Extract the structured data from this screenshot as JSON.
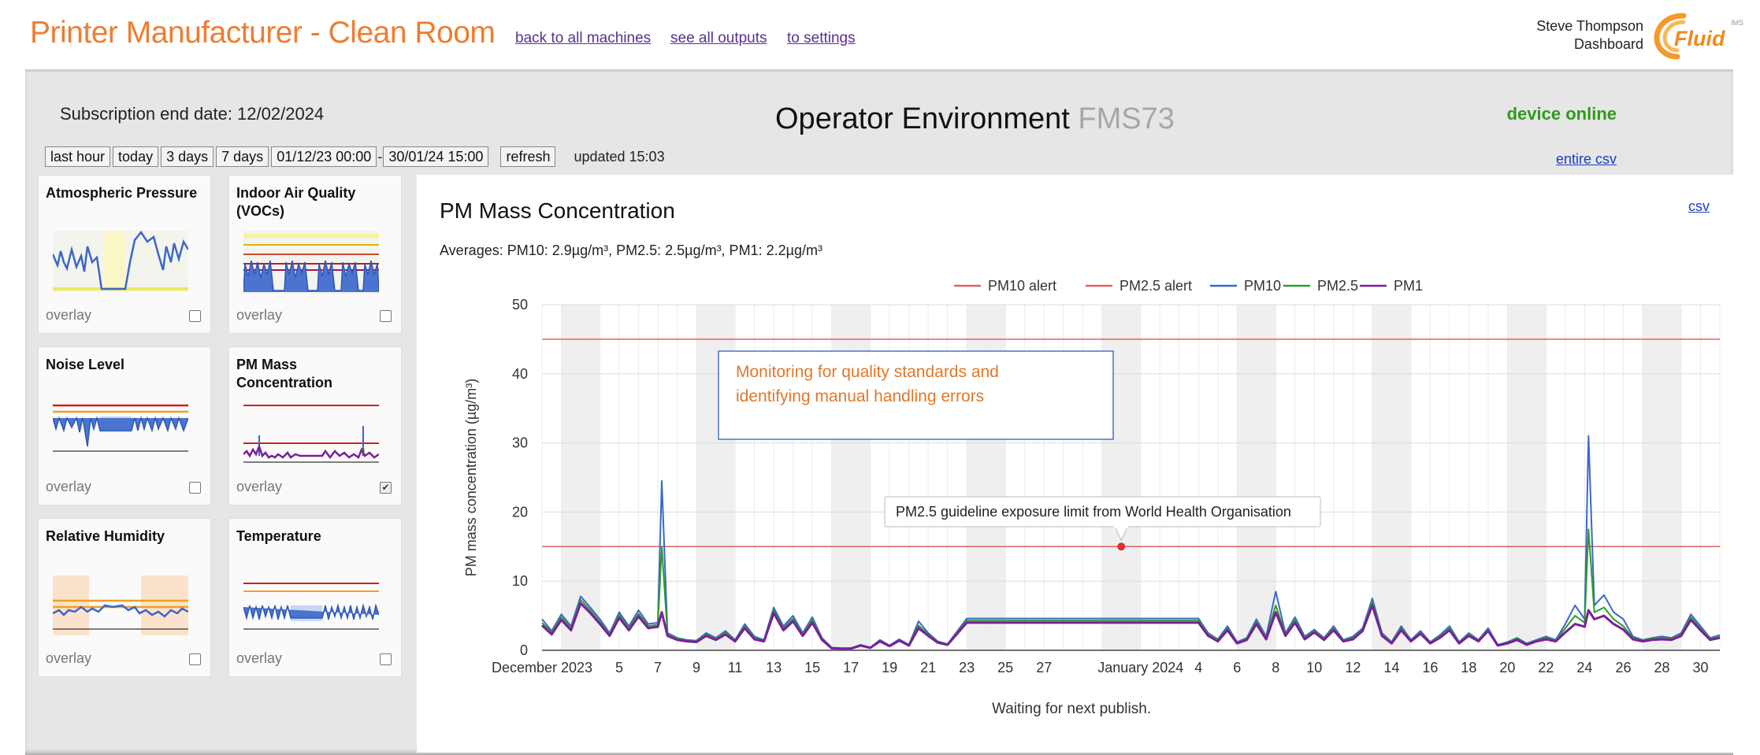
{
  "header": {
    "title": "Printer Manufacturer - Clean Room",
    "links": [
      "back to all machines",
      "see all outputs",
      "to settings"
    ],
    "user": "Steve Thompson",
    "user_sub": "Dashboard",
    "logo_text": "Fluid",
    "logo_tm": "IMS"
  },
  "subscription": "Subscription end date: 12/02/2024",
  "page_heading": {
    "main": "Operator Environment",
    "device": "FMS73"
  },
  "device_status": "device online",
  "entire_csv": "entire csv",
  "range": {
    "buttons": [
      "last hour",
      "today",
      "3 days",
      "7 days"
    ],
    "from": "01/12/23 00:00",
    "dash": "-",
    "to": "30/01/24 15:00",
    "refresh": "refresh",
    "updated": "updated 15:03"
  },
  "thumbnails": [
    {
      "title": "Atmospheric Pressure",
      "overlay": "overlay",
      "checked": false
    },
    {
      "title": "Indoor Air Quality (VOCs)",
      "overlay": "overlay",
      "checked": false
    },
    {
      "title": "Noise Level",
      "overlay": "overlay",
      "checked": false
    },
    {
      "title": "PM Mass Concentration",
      "overlay": "overlay",
      "checked": true
    },
    {
      "title": "Relative Humidity",
      "overlay": "overlay",
      "checked": false
    },
    {
      "title": "Temperature",
      "overlay": "overlay",
      "checked": false
    }
  ],
  "chart": {
    "title": "PM Mass Concentration",
    "csv": "csv",
    "averages": "Averages: PM10: 2.9µg/m³, PM2.5: 2.5µg/m³, PM1: 2.2µg/m³",
    "status": "Waiting for next publish."
  },
  "colors": {
    "pm10": "#3b67c8",
    "pm25": "#2f9a2c",
    "pm1": "#7a1f9a",
    "alert": "#e06060",
    "title": "#ee7d31",
    "online": "#2e9a1c"
  },
  "chart_data": {
    "type": "line",
    "title": "PM Mass Concentration",
    "ylabel": "PM mass concentration (µg/m³)",
    "xlabel": "",
    "ylim": [
      0,
      50
    ],
    "yticks": [
      0,
      10,
      20,
      30,
      40,
      50
    ],
    "xlim_days": [
      0,
      61
    ],
    "xticks": [
      {
        "day": 0,
        "label": "December 2023"
      },
      {
        "day": 4,
        "label": "5"
      },
      {
        "day": 6,
        "label": "7"
      },
      {
        "day": 8,
        "label": "9"
      },
      {
        "day": 10,
        "label": "11"
      },
      {
        "day": 12,
        "label": "13"
      },
      {
        "day": 14,
        "label": "15"
      },
      {
        "day": 16,
        "label": "17"
      },
      {
        "day": 18,
        "label": "19"
      },
      {
        "day": 20,
        "label": "21"
      },
      {
        "day": 22,
        "label": "23"
      },
      {
        "day": 24,
        "label": "25"
      },
      {
        "day": 26,
        "label": "27"
      },
      {
        "day": 31,
        "label": "January 2024"
      },
      {
        "day": 34,
        "label": "4"
      },
      {
        "day": 36,
        "label": "6"
      },
      {
        "day": 38,
        "label": "8"
      },
      {
        "day": 40,
        "label": "10"
      },
      {
        "day": 42,
        "label": "12"
      },
      {
        "day": 44,
        "label": "14"
      },
      {
        "day": 46,
        "label": "16"
      },
      {
        "day": 48,
        "label": "18"
      },
      {
        "day": 50,
        "label": "20"
      },
      {
        "day": 52,
        "label": "22"
      },
      {
        "day": 54,
        "label": "24"
      },
      {
        "day": 56,
        "label": "26"
      },
      {
        "day": 58,
        "label": "28"
      },
      {
        "day": 60,
        "label": "30"
      }
    ],
    "legend": [
      "PM10 alert",
      "PM2.5 alert",
      "PM10",
      "PM2.5",
      "PM1"
    ],
    "legend_position": "top-right",
    "alert_lines": [
      {
        "name": "PM10 alert",
        "value": 45
      },
      {
        "name": "PM2.5 alert",
        "value": 15
      }
    ],
    "x": [
      0,
      0.5,
      1,
      1.5,
      2,
      2.5,
      3,
      3.5,
      4,
      4.5,
      5,
      5.5,
      6,
      6.2,
      6.5,
      7,
      7.5,
      8,
      8.5,
      9,
      9.5,
      10,
      10.5,
      11,
      11.5,
      12,
      12.5,
      13,
      13.5,
      14,
      14.5,
      15,
      15.5,
      16,
      16.5,
      17,
      17.5,
      18,
      18.5,
      19,
      19.5,
      20,
      20.5,
      21,
      22,
      24,
      26,
      28,
      30,
      32,
      34,
      34.5,
      35,
      35.5,
      36,
      36.5,
      37,
      37.5,
      38,
      38.5,
      39,
      39.5,
      40,
      40.5,
      41,
      41.5,
      42,
      42.5,
      43,
      43.5,
      44,
      44.5,
      45,
      45.5,
      46,
      46.5,
      47,
      47.5,
      48,
      48.5,
      49,
      49.5,
      50,
      50.5,
      51,
      51.5,
      52,
      52.5,
      53,
      53.5,
      54,
      54.2,
      54.5,
      55,
      55.5,
      56,
      56.5,
      57,
      57.5,
      58,
      58.5,
      59,
      59.5,
      60,
      60.5,
      61
    ],
    "series": [
      {
        "name": "PM10",
        "values": [
          4.5,
          2.8,
          5.2,
          3.5,
          7.8,
          6.2,
          4.5,
          2.5,
          5.5,
          3.5,
          5.8,
          3.8,
          4,
          24.5,
          2.5,
          1.8,
          1.5,
          1.4,
          2.5,
          1.8,
          2.8,
          1.5,
          3.8,
          2,
          1.5,
          6.2,
          3.5,
          5,
          2.5,
          4.8,
          1.8,
          0.4,
          0.3,
          0.3,
          0.8,
          0.4,
          1.5,
          0.7,
          1.6,
          0.8,
          4.2,
          2.5,
          1.3,
          0.9,
          4.6,
          4.6,
          4.6,
          4.6,
          4.6,
          4.6,
          4.6,
          2.5,
          1.6,
          3.5,
          1.2,
          1.8,
          4.5,
          2,
          8.5,
          2.5,
          4.8,
          2,
          3,
          1.8,
          3.5,
          1.5,
          2,
          3.2,
          7.5,
          2.5,
          1.2,
          3.5,
          1.5,
          2.8,
          1.2,
          2.2,
          3.5,
          1.2,
          2.5,
          1.5,
          3.2,
          0.8,
          1.2,
          1.8,
          1,
          1.5,
          2,
          1.5,
          3.8,
          6.5,
          4.5,
          31,
          6.5,
          8,
          5.5,
          4.5,
          2,
          1.5,
          1.8,
          2,
          1.8,
          2.5,
          5.2,
          3.5,
          1.8,
          2.2
        ]
      },
      {
        "name": "PM2.5",
        "values": [
          4,
          2.6,
          4.8,
          3.2,
          7.3,
          5.8,
          4.1,
          2.3,
          5.1,
          3.2,
          5.3,
          3.5,
          3.7,
          15,
          2.3,
          1.7,
          1.4,
          1.3,
          2.3,
          1.7,
          2.6,
          1.4,
          3.5,
          1.8,
          1.4,
          5.8,
          3.2,
          4.6,
          2.3,
          4.4,
          1.7,
          0.35,
          0.28,
          0.28,
          0.75,
          0.38,
          1.4,
          0.65,
          1.5,
          0.75,
          3.6,
          2.3,
          1.2,
          0.85,
          4.3,
          4.3,
          4.3,
          4.3,
          4.3,
          4.3,
          4.3,
          2.3,
          1.5,
          3.2,
          1.1,
          1.7,
          4.1,
          1.8,
          6.5,
          2.3,
          4.4,
          1.8,
          2.8,
          1.7,
          3.2,
          1.4,
          1.8,
          3,
          7,
          2.3,
          1.1,
          3.2,
          1.4,
          2.6,
          1.1,
          2,
          3.2,
          1.1,
          2.3,
          1.4,
          3,
          0.75,
          1.1,
          1.7,
          0.9,
          1.4,
          1.8,
          1.4,
          3.2,
          5,
          4,
          17.5,
          5.5,
          6.2,
          4.5,
          3.5,
          1.8,
          1.4,
          1.7,
          1.8,
          1.7,
          2.3,
          4.8,
          3.2,
          1.7,
          2
        ]
      },
      {
        "name": "PM1",
        "values": [
          3.6,
          2.3,
          4.4,
          2.9,
          6.8,
          5.4,
          3.8,
          2.1,
          4.7,
          2.9,
          4.9,
          3.2,
          3.4,
          5.5,
          2.1,
          1.5,
          1.3,
          1.2,
          2.1,
          1.5,
          2.3,
          1.3,
          3.2,
          1.6,
          1.3,
          5.4,
          2.9,
          4.2,
          2.1,
          4,
          1.5,
          0.3,
          0.25,
          0.25,
          0.7,
          0.35,
          1.3,
          0.6,
          1.4,
          0.7,
          3.2,
          2.1,
          1.1,
          0.8,
          4,
          4,
          4,
          4,
          4,
          4,
          4,
          2.1,
          1.3,
          2.9,
          1,
          1.5,
          3.8,
          1.6,
          5.5,
          2.1,
          4,
          1.6,
          2.6,
          1.5,
          2.9,
          1.3,
          1.6,
          2.8,
          6.5,
          2.1,
          1,
          2.9,
          1.3,
          2.4,
          1,
          1.8,
          2.9,
          1,
          2.1,
          1.3,
          2.8,
          0.7,
          1,
          1.5,
          0.8,
          1.3,
          1.6,
          1.3,
          2.6,
          3.8,
          3.4,
          5.8,
          4.5,
          5,
          3.8,
          3,
          1.6,
          1.3,
          1.5,
          1.6,
          1.5,
          2.1,
          4.4,
          2.9,
          1.5,
          1.8
        ]
      }
    ],
    "annotations": [
      {
        "text": "Monitoring for quality standards and identifying manual handling errors",
        "lines": [
          "Monitoring for quality standards and",
          "identifying manual handling errors"
        ]
      },
      {
        "text": "PM2.5 guideline exposure limit from World Health Organisation",
        "day": 30,
        "value": 15
      }
    ]
  }
}
